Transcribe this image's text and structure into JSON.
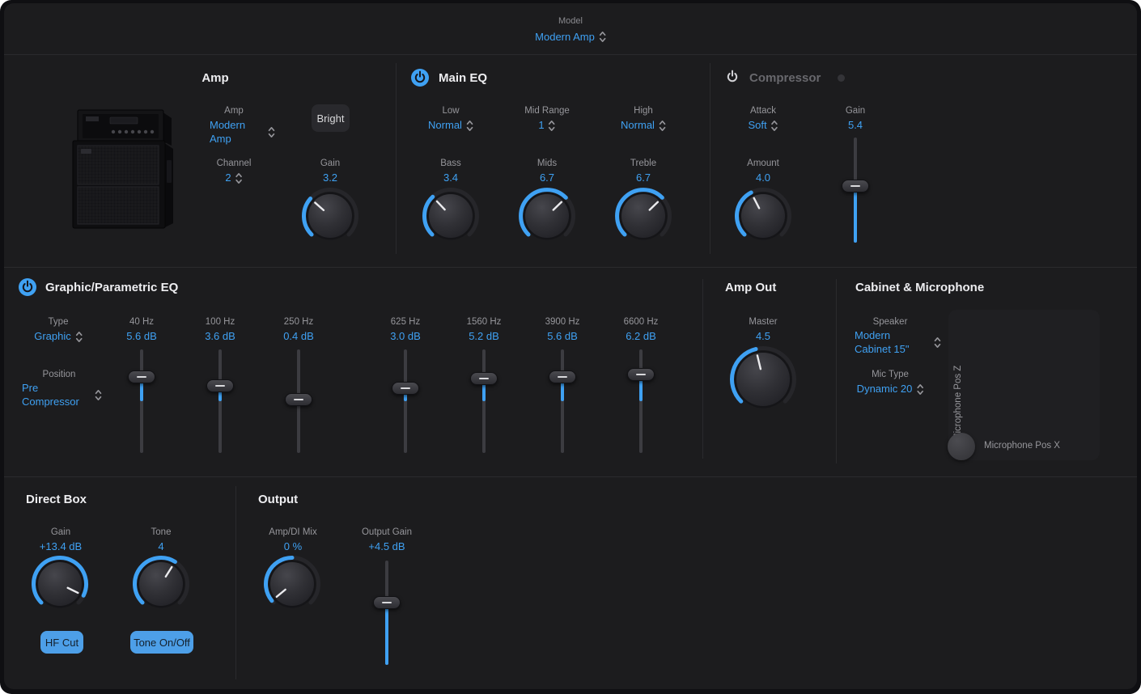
{
  "colors": {
    "accent": "#3FA1F3",
    "panel": "#1C1C1E",
    "background": "#0F0F12",
    "button_blue": "#4D9FE8"
  },
  "header": {
    "model_label": "Model",
    "model_value": "Modern Amp"
  },
  "amp": {
    "title": "Amp",
    "amp_select": {
      "label": "Amp",
      "value": "Modern Amp"
    },
    "bright_button": "Bright",
    "channel_select": {
      "label": "Channel",
      "value": "2"
    },
    "gain_knob": {
      "label": "Gain",
      "value": "3.2",
      "frac": 0.32,
      "arc": "min"
    }
  },
  "main_eq": {
    "title": "Main EQ",
    "power": "on",
    "low": {
      "label": "Low",
      "value": "Normal"
    },
    "mid_range": {
      "label": "Mid Range",
      "value": "1"
    },
    "high": {
      "label": "High",
      "value": "Normal"
    },
    "bass": {
      "label": "Bass",
      "value": "3.4",
      "frac": 0.34,
      "arc": "min"
    },
    "mids": {
      "label": "Mids",
      "value": "6.7",
      "frac": 0.67,
      "arc": "min"
    },
    "treble": {
      "label": "Treble",
      "value": "6.7",
      "frac": 0.67,
      "arc": "min"
    }
  },
  "compressor": {
    "title": "Compressor",
    "power": "off",
    "attack": {
      "label": "Attack",
      "value": "Soft"
    },
    "gain": {
      "label": "Gain",
      "value": "5.4",
      "frac": 0.54,
      "fill": "bottom"
    },
    "amount": {
      "label": "Amount",
      "value": "4.0",
      "frac": 0.4,
      "arc": "min"
    }
  },
  "graphic_eq": {
    "title": "Graphic/Parametric EQ",
    "power": "on",
    "type": {
      "label": "Type",
      "value": "Graphic"
    },
    "position": {
      "label": "Position",
      "value": "Pre Compressor"
    },
    "bands": [
      {
        "freq": "40 Hz",
        "gain": "5.6 dB",
        "frac": 0.733,
        "fill": "center"
      },
      {
        "freq": "100 Hz",
        "gain": "3.6 dB",
        "frac": 0.65,
        "fill": "center"
      },
      {
        "freq": "250 Hz",
        "gain": "0.4 dB",
        "frac": 0.517,
        "fill": "center"
      },
      {
        "freq": "625 Hz",
        "gain": "3.0 dB",
        "frac": 0.625,
        "fill": "center"
      },
      {
        "freq": "1560 Hz",
        "gain": "5.2 dB",
        "frac": 0.717,
        "fill": "center"
      },
      {
        "freq": "3900 Hz",
        "gain": "5.6 dB",
        "frac": 0.733,
        "fill": "center"
      },
      {
        "freq": "6600 Hz",
        "gain": "6.2 dB",
        "frac": 0.758,
        "fill": "center"
      }
    ]
  },
  "amp_out": {
    "title": "Amp Out",
    "master": {
      "label": "Master",
      "value": "4.5",
      "frac": 0.45,
      "arc": "min"
    }
  },
  "cabinet": {
    "title": "Cabinet & Microphone",
    "speaker": {
      "label": "Speaker",
      "value": "Modern Cabinet 15\""
    },
    "mic_type": {
      "label": "Mic Type",
      "value": "Dynamic 20"
    },
    "pad": {
      "z_label": "Microphone Pos Z",
      "x_label": "Microphone Pos X"
    }
  },
  "direct_box": {
    "title": "Direct Box",
    "gain": {
      "label": "Gain",
      "value": "+13.4 dB",
      "frac": 0.93,
      "arc": "min"
    },
    "tone": {
      "label": "Tone",
      "value": "4",
      "frac": 0.62,
      "arc": "min"
    },
    "hf_cut_button": "HF Cut",
    "tone_toggle_button": "Tone On/Off"
  },
  "output": {
    "title": "Output",
    "mix": {
      "label": "Amp/DI Mix",
      "value": "0 %",
      "frac": 0.02,
      "arc": "top"
    },
    "output_gain": {
      "label": "Output Gain",
      "value": "+4.5 dB",
      "frac": 0.6,
      "fill": "bottom"
    }
  }
}
